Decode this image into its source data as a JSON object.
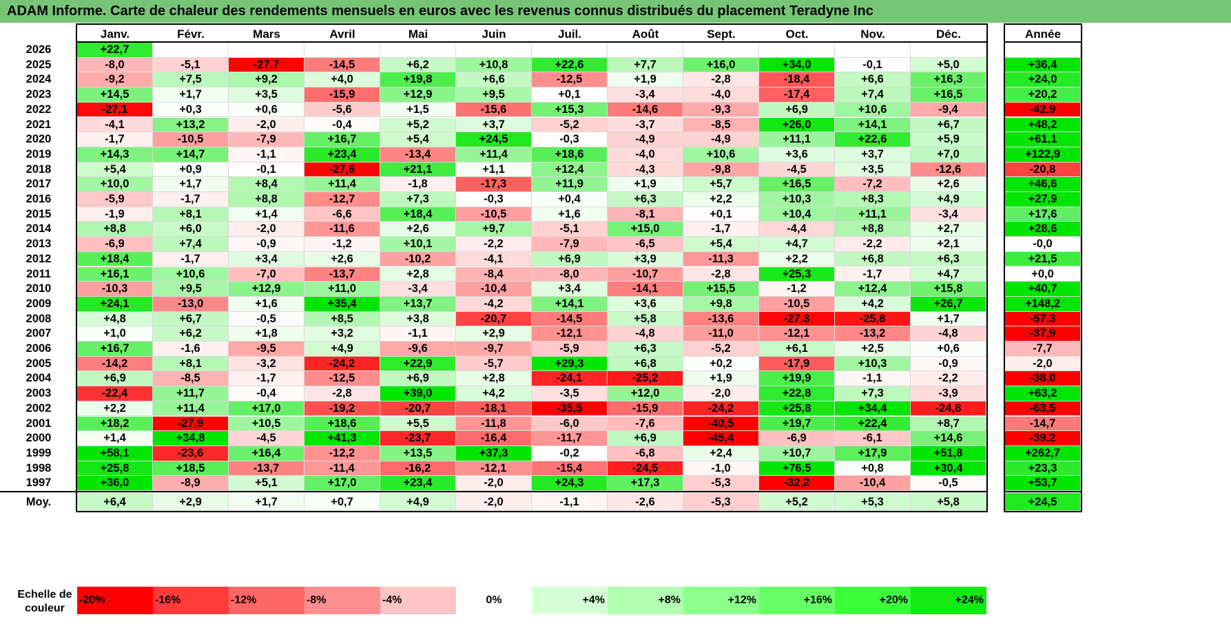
{
  "title": "ADAM Informe. Carte de chaleur des rendements mensuels en euros avec les revenus connus distribués du placement Teradyne Inc",
  "chart_data": {
    "type": "heatmap",
    "title": "ADAM Informe. Carte de chaleur des rendements mensuels en euros avec les revenus connus distribués du placement Teradyne Inc",
    "columns": [
      "Janv.",
      "Févr.",
      "Mars",
      "Avril",
      "Mai",
      "Juin",
      "Juil.",
      "Août",
      "Sept.",
      "Oct.",
      "Nov.",
      "Déc."
    ],
    "annual_header": "Année",
    "rows": [
      {
        "year": "2026",
        "values": [
          "+22,7",
          null,
          null,
          null,
          null,
          null,
          null,
          null,
          null,
          null,
          null,
          null
        ],
        "annual": null
      },
      {
        "year": "2025",
        "values": [
          "-8,0",
          "-5,1",
          "-27,7",
          "-14,5",
          "+6,2",
          "+10,8",
          "+22,6",
          "+7,7",
          "+16,0",
          "+34,0",
          "-0,1",
          "+5,0"
        ],
        "annual": "+36,4"
      },
      {
        "year": "2024",
        "values": [
          "-9,2",
          "+7,5",
          "+9,2",
          "+4,0",
          "+19,8",
          "+6,6",
          "-12,5",
          "+1,9",
          "-2,8",
          "-18,4",
          "+6,6",
          "+16,3"
        ],
        "annual": "+24,0"
      },
      {
        "year": "2023",
        "values": [
          "+14,5",
          "+1,7",
          "+3,5",
          "-15,9",
          "+12,9",
          "+9,5",
          "+0,1",
          "-3,4",
          "-4,0",
          "-17,4",
          "+7,4",
          "+16,5"
        ],
        "annual": "+20,2"
      },
      {
        "year": "2022",
        "values": [
          "-27,1",
          "+0,3",
          "+0,6",
          "-5,6",
          "+1,5",
          "-15,6",
          "+15,3",
          "-14,6",
          "-9,3",
          "+6,9",
          "+10,6",
          "-9,4"
        ],
        "annual": "-42,9"
      },
      {
        "year": "2021",
        "values": [
          "-4,1",
          "+13,2",
          "-2,0",
          "-0,4",
          "+5,2",
          "+3,7",
          "-5,2",
          "-3,7",
          "-8,5",
          "+26,0",
          "+14,1",
          "+6,7"
        ],
        "annual": "+48,2"
      },
      {
        "year": "2020",
        "values": [
          "-1,7",
          "-10,5",
          "-7,9",
          "+16,7",
          "+5,4",
          "+24,5",
          "-0,3",
          "-4,9",
          "-4,9",
          "+11,1",
          "+22,6",
          "+5,9"
        ],
        "annual": "+61,1"
      },
      {
        "year": "2019",
        "values": [
          "+14,3",
          "+14,7",
          "-1,1",
          "+23,4",
          "-13,4",
          "+11,4",
          "+18,6",
          "-4,0",
          "+10,6",
          "+3,6",
          "+3,7",
          "+7,0"
        ],
        "annual": "+122,9"
      },
      {
        "year": "2018",
        "values": [
          "+5,4",
          "+0,9",
          "-0,1",
          "-27,6",
          "+21,1",
          "+1,1",
          "+12,4",
          "-4,3",
          "-9,8",
          "-4,5",
          "+3,5",
          "-12,6"
        ],
        "annual": "-20,8"
      },
      {
        "year": "2017",
        "values": [
          "+10,0",
          "+1,7",
          "+8,4",
          "+11,4",
          "-1,8",
          "-17,3",
          "+11,9",
          "+1,9",
          "+5,7",
          "+16,5",
          "-7,2",
          "+2,6"
        ],
        "annual": "+46,6"
      },
      {
        "year": "2016",
        "values": [
          "-5,9",
          "-1,7",
          "+8,8",
          "-12,7",
          "+7,3",
          "-0,3",
          "+0,4",
          "+6,3",
          "+2,2",
          "+10,3",
          "+8,3",
          "+4,9"
        ],
        "annual": "+27,9"
      },
      {
        "year": "2015",
        "values": [
          "-1,9",
          "+8,1",
          "+1,4",
          "-6,6",
          "+18,4",
          "-10,5",
          "+1,6",
          "-8,1",
          "+0,1",
          "+10,4",
          "+11,1",
          "-3,4"
        ],
        "annual": "+17,6"
      },
      {
        "year": "2014",
        "values": [
          "+8,8",
          "+6,0",
          "-2,0",
          "-11,6",
          "+2,6",
          "+9,7",
          "-5,1",
          "+15,0",
          "-1,7",
          "-4,4",
          "+8,8",
          "+2,7"
        ],
        "annual": "+28,6"
      },
      {
        "year": "2013",
        "values": [
          "-6,9",
          "+7,4",
          "-0,9",
          "-1,2",
          "+10,1",
          "-2,2",
          "-7,9",
          "-6,5",
          "+5,4",
          "+4,7",
          "-2,2",
          "+2,1"
        ],
        "annual": "-0,0"
      },
      {
        "year": "2012",
        "values": [
          "+18,4",
          "-1,7",
          "+3,4",
          "+2,6",
          "-10,2",
          "-4,1",
          "+6,9",
          "+3,9",
          "-11,3",
          "+2,2",
          "+6,8",
          "+6,3"
        ],
        "annual": "+21,5"
      },
      {
        "year": "2011",
        "values": [
          "+16,1",
          "+10,6",
          "-7,0",
          "-13,7",
          "+2,8",
          "-8,4",
          "-8,0",
          "-10,7",
          "-2,8",
          "+25,3",
          "-1,7",
          "+4,7"
        ],
        "annual": "+0,0"
      },
      {
        "year": "2010",
        "values": [
          "-10,3",
          "+9,5",
          "+12,9",
          "+11,0",
          "-3,4",
          "-10,4",
          "+3,4",
          "-14,1",
          "+15,5",
          "-1,2",
          "+12,4",
          "+15,8"
        ],
        "annual": "+40,7"
      },
      {
        "year": "2009",
        "values": [
          "+24,1",
          "-13,0",
          "+1,6",
          "+35,4",
          "+13,7",
          "-4,2",
          "+14,1",
          "+3,6",
          "+9,8",
          "-10,5",
          "+4,2",
          "+26,7"
        ],
        "annual": "+148,2"
      },
      {
        "year": "2008",
        "values": [
          "+4,8",
          "+6,7",
          "-0,5",
          "+8,5",
          "+3,8",
          "-20,7",
          "-14,5",
          "+5,8",
          "-13,6",
          "-27,3",
          "-25,8",
          "+1,7"
        ],
        "annual": "-57,3"
      },
      {
        "year": "2007",
        "values": [
          "+1,0",
          "+6,2",
          "+1,8",
          "+3,2",
          "-1,1",
          "+2,9",
          "-12,1",
          "-4,8",
          "-11,0",
          "-12,1",
          "-13,2",
          "-4,8"
        ],
        "annual": "-37,9"
      },
      {
        "year": "2006",
        "values": [
          "+16,7",
          "-1,6",
          "-9,5",
          "+4,9",
          "-9,6",
          "-9,7",
          "-5,9",
          "+6,3",
          "-5,2",
          "+6,1",
          "+2,5",
          "+0,6"
        ],
        "annual": "-7,7"
      },
      {
        "year": "2005",
        "values": [
          "-14,2",
          "+8,1",
          "-3,2",
          "-24,2",
          "+22,9",
          "-5,7",
          "+29,3",
          "+6,8",
          "+0,2",
          "-17,9",
          "+10,3",
          "-0,9"
        ],
        "annual": "-2,0"
      },
      {
        "year": "2004",
        "values": [
          "+6,9",
          "-8,5",
          "-1,7",
          "-12,5",
          "+6,9",
          "+2,8",
          "-24,1",
          "-25,2",
          "+1,9",
          "+19,9",
          "-1,1",
          "-2,2"
        ],
        "annual": "-38,0"
      },
      {
        "year": "2003",
        "values": [
          "-22,4",
          "+11,7",
          "-0,4",
          "-2,8",
          "+39,0",
          "+4,2",
          "-3,5",
          "+12,0",
          "-2,0",
          "+22,8",
          "+7,3",
          "-3,9"
        ],
        "annual": "+63,2"
      },
      {
        "year": "2002",
        "values": [
          "+2,2",
          "+11,4",
          "+17,0",
          "-19,2",
          "-20,7",
          "-18,1",
          "-35,5",
          "-15,9",
          "-24,2",
          "+25,8",
          "+34,4",
          "-24,8"
        ],
        "annual": "-63,5"
      },
      {
        "year": "2001",
        "values": [
          "+18,2",
          "-27,9",
          "+10,5",
          "+18,6",
          "+5,5",
          "-11,8",
          "-6,0",
          "-7,6",
          "-40,5",
          "+19,7",
          "+22,4",
          "+8,7"
        ],
        "annual": "-14,7"
      },
      {
        "year": "2000",
        "values": [
          "+1,4",
          "+34,8",
          "-4,5",
          "+41,3",
          "-23,7",
          "-16,4",
          "-11,7",
          "+6,9",
          "-45,4",
          "-6,9",
          "-6,1",
          "+14,6"
        ],
        "annual": "-39,2"
      },
      {
        "year": "1999",
        "values": [
          "+58,1",
          "-23,6",
          "+16,4",
          "-12,2",
          "+13,5",
          "+37,3",
          "-0,2",
          "-6,8",
          "+2,4",
          "+10,7",
          "+17,9",
          "+51,8"
        ],
        "annual": "+262,7"
      },
      {
        "year": "1998",
        "values": [
          "+25,8",
          "+18,5",
          "-13,7",
          "-11,4",
          "-16,2",
          "-12,1",
          "-15,4",
          "-24,5",
          "-1,0",
          "+76,5",
          "+0,8",
          "+30,4"
        ],
        "annual": "+23,3"
      },
      {
        "year": "1997",
        "values": [
          "+36,0",
          "-8,9",
          "+5,1",
          "+17,0",
          "+23,4",
          "-2,0",
          "+24,3",
          "+17,3",
          "-5,3",
          "-32,2",
          "-10,4",
          "-0,5"
        ],
        "annual": "+53,7"
      }
    ],
    "average": {
      "label": "Moy.",
      "values": [
        "+6,4",
        "+2,9",
        "+1,7",
        "+0,7",
        "+4,9",
        "-2,0",
        "-1,1",
        "-2,6",
        "-5,3",
        "+5,2",
        "+5,3",
        "+5,8"
      ],
      "annual": "+24,5"
    },
    "scale": {
      "label": "Echelle de couleur",
      "entries": [
        "-20%",
        "-16%",
        "-12%",
        "-8%",
        "-4%",
        "0%",
        "+4%",
        "+8%",
        "+12%",
        "+16%",
        "+20%",
        "+24%"
      ]
    }
  },
  "colors": {
    "title_bg": "#76c576",
    "scale_bg": [
      "#ff0000",
      "#ff3a3a",
      "#ff6666",
      "#ff8e8e",
      "#ffc4c4",
      "#ffffff",
      "#d6ffd6",
      "#b2ffb2",
      "#8cff8c",
      "#66ff66",
      "#3cff3c",
      "#12ea12"
    ]
  }
}
